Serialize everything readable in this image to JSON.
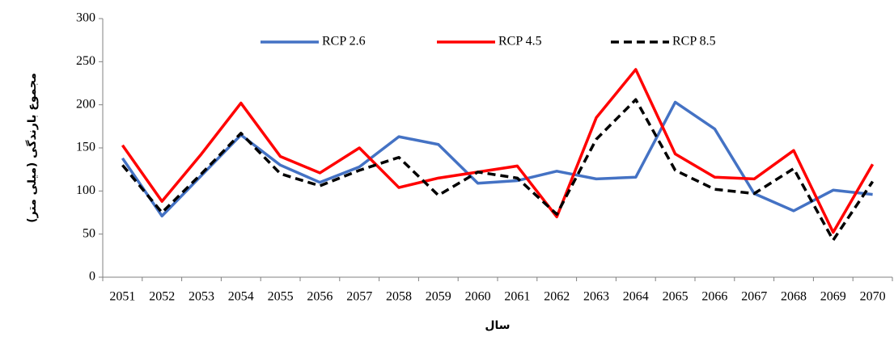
{
  "chart_data": {
    "type": "line",
    "y_label": "مجموع بارندگی (میلی متر)",
    "x_label": "سال",
    "categories": [
      "2051",
      "2052",
      "2053",
      "2054",
      "2055",
      "2056",
      "2057",
      "2058",
      "2059",
      "2060",
      "2061",
      "2062",
      "2063",
      "2064",
      "2065",
      "2066",
      "2067",
      "2068",
      "2069",
      "2070"
    ],
    "series": [
      {
        "name": "RCP 2.6",
        "color": "#4472c4",
        "dash": false,
        "values": [
          138,
          71,
          118,
          165,
          130,
          110,
          128,
          163,
          154,
          109,
          112,
          123,
          114,
          116,
          203,
          172,
          97,
          77,
          101,
          96
        ]
      },
      {
        "name": "RCP 4.5",
        "color": "#ff0000",
        "dash": false,
        "values": [
          153,
          88,
          143,
          202,
          140,
          121,
          150,
          104,
          115,
          122,
          129,
          70,
          185,
          241,
          143,
          116,
          114,
          147,
          52,
          131
        ]
      },
      {
        "name": "RCP 8.5",
        "color": "#000000",
        "dash": true,
        "values": [
          130,
          75,
          120,
          167,
          120,
          106,
          124,
          139,
          95,
          122,
          115,
          73,
          160,
          206,
          124,
          102,
          97,
          126,
          43,
          111
        ]
      }
    ],
    "ylim": [
      0,
      300
    ],
    "yticks": [
      0,
      50,
      100,
      150,
      200,
      250,
      300
    ],
    "grid": false,
    "legend": "top"
  }
}
